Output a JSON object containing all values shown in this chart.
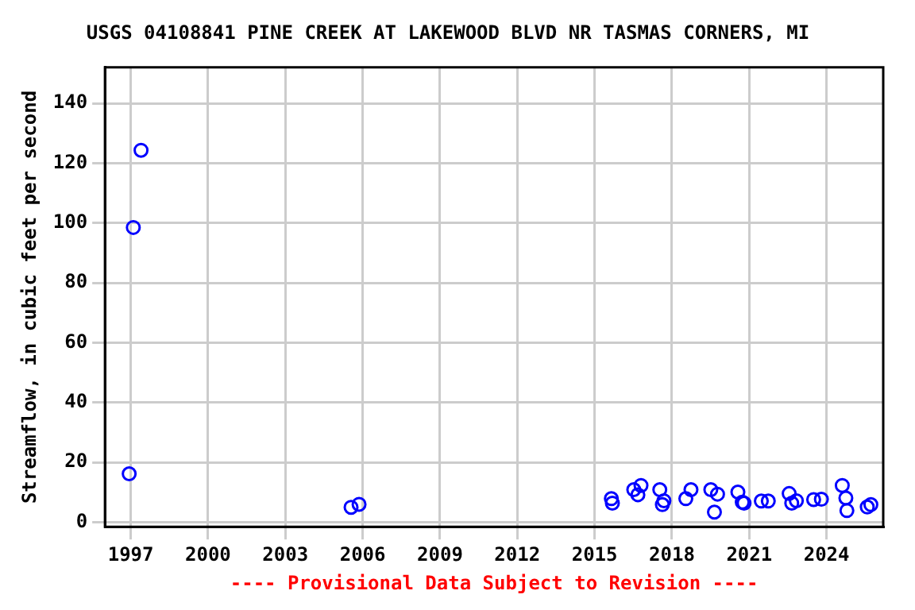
{
  "chart_data": {
    "type": "scatter",
    "title": "USGS 04108841 PINE CREEK AT LAKEWOOD BLVD NR TASMAS CORNERS, MI",
    "ylabel": "Streamflow, in cubic feet per second",
    "annotations": [
      "---- Provisional Data Subject to Revision ----"
    ],
    "x": [
      1996.94,
      1997.1,
      1997.4,
      2005.55,
      2005.86,
      2015.65,
      2015.69,
      2016.52,
      2016.68,
      2016.8,
      2017.53,
      2017.69,
      2017.63,
      2018.54,
      2018.74,
      2019.51,
      2019.77,
      2019.65,
      2020.56,
      2020.73,
      2020.8,
      2021.47,
      2021.74,
      2022.55,
      2022.65,
      2022.83,
      2023.5,
      2023.8,
      2024.61,
      2024.75,
      2024.79,
      2025.58,
      2025.72
    ],
    "values": [
      16.2,
      98.5,
      124.3,
      5.0,
      6.0,
      7.9,
      6.4,
      10.9,
      9.2,
      12.3,
      10.9,
      7.2,
      5.9,
      7.9,
      10.9,
      10.9,
      9.4,
      3.4,
      10.1,
      6.7,
      6.4,
      7.1,
      7.1,
      9.6,
      6.4,
      7.2,
      7.6,
      7.7,
      12.3,
      8.1,
      3.9,
      5.1,
      5.9
    ],
    "color": "#0000ff",
    "marker": "circle",
    "grid": true,
    "xlim": [
      1996,
      2026.2
    ],
    "xticks": [
      1997,
      2000,
      2003,
      2006,
      2009,
      2012,
      2015,
      2018,
      2021,
      2024
    ],
    "ylim": [
      -1.5,
      152
    ],
    "yticks": [
      0,
      20,
      40,
      60,
      80,
      100,
      120,
      140
    ]
  }
}
